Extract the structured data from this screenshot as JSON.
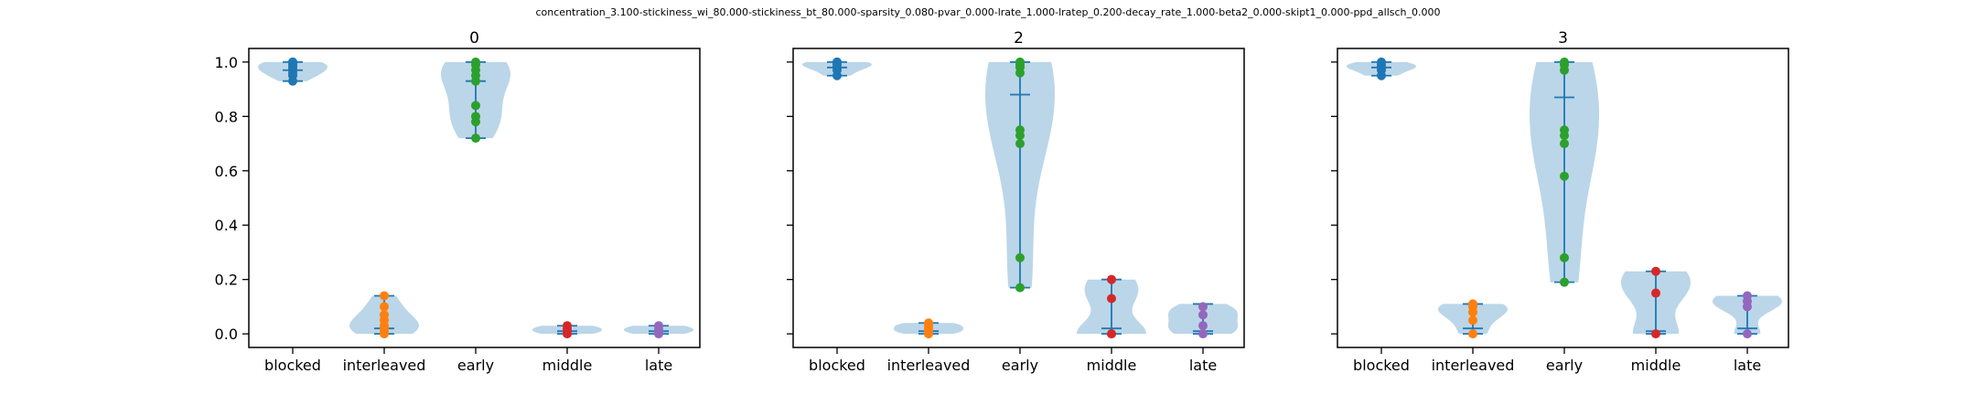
{
  "figure_title": "concentration_3.100-stickiness_wi_80.000-stickiness_bt_80.000-sparsity_0.080-pvar_0.000-lrate_1.000-lratep_0.200-decay_rate_1.000-beta2_0.000-skipt1_0.000-ppd_allsch_0.000",
  "colors": {
    "violin_fill": "#1f77b4",
    "violin_line": "#1f77b4",
    "points": [
      "#1f77b4",
      "#ff7f0e",
      "#2ca02c",
      "#d62728",
      "#9467bd"
    ]
  },
  "chart_data": [
    {
      "type": "violin",
      "title": "0",
      "categories": [
        "blocked",
        "interleaved",
        "early",
        "middle",
        "late"
      ],
      "ylim": [
        -0.05,
        1.05
      ],
      "yticks": [
        "0.0",
        "0.2",
        "0.4",
        "0.6",
        "0.8",
        "1.0"
      ],
      "grid": false,
      "series": [
        {
          "values": [
            0.93,
            0.95,
            0.96,
            0.97,
            0.98,
            0.99,
            1.0,
            1.0
          ],
          "min": 0.93,
          "max": 1.0,
          "mean": 0.97
        },
        {
          "values": [
            0.0,
            0.01,
            0.02,
            0.03,
            0.05,
            0.07,
            0.1,
            0.14
          ],
          "min": 0.0,
          "max": 0.14,
          "mean": 0.02
        },
        {
          "values": [
            0.72,
            0.78,
            0.8,
            0.84,
            0.93,
            0.95,
            0.97,
            0.99,
            1.0
          ],
          "min": 0.72,
          "max": 1.0,
          "mean": 0.93
        },
        {
          "values": [
            0.0,
            0.01,
            0.02,
            0.03
          ],
          "min": 0.0,
          "max": 0.03,
          "mean": 0.01
        },
        {
          "values": [
            0.0,
            0.01,
            0.02,
            0.03
          ],
          "min": 0.0,
          "max": 0.03,
          "mean": 0.01
        }
      ]
    },
    {
      "type": "violin",
      "title": "2",
      "categories": [
        "blocked",
        "interleaved",
        "early",
        "middle",
        "late"
      ],
      "ylim": [
        -0.05,
        1.05
      ],
      "yticks": [
        "0.0",
        "0.2",
        "0.4",
        "0.6",
        "0.8",
        "1.0"
      ],
      "grid": false,
      "series": [
        {
          "values": [
            0.95,
            0.97,
            0.98,
            0.99,
            1.0,
            1.0
          ],
          "min": 0.95,
          "max": 1.0,
          "mean": 0.98
        },
        {
          "values": [
            0.0,
            0.01,
            0.02,
            0.03,
            0.04
          ],
          "min": 0.0,
          "max": 0.04,
          "mean": 0.01
        },
        {
          "values": [
            0.17,
            0.28,
            0.7,
            0.73,
            0.75,
            0.96,
            0.98,
            0.99,
            1.0
          ],
          "min": 0.17,
          "max": 1.0,
          "mean": 0.88
        },
        {
          "values": [
            0.0,
            0.0,
            0.13,
            0.2
          ],
          "min": 0.0,
          "max": 0.2,
          "mean": 0.02
        },
        {
          "values": [
            0.0,
            0.03,
            0.07,
            0.1
          ],
          "min": 0.0,
          "max": 0.11,
          "mean": 0.01
        }
      ]
    },
    {
      "type": "violin",
      "title": "3",
      "categories": [
        "blocked",
        "interleaved",
        "early",
        "middle",
        "late"
      ],
      "ylim": [
        -0.05,
        1.05
      ],
      "yticks": [
        "0.0",
        "0.2",
        "0.4",
        "0.6",
        "0.8",
        "1.0"
      ],
      "grid": false,
      "series": [
        {
          "values": [
            0.95,
            0.97,
            0.98,
            0.99,
            1.0
          ],
          "min": 0.95,
          "max": 1.0,
          "mean": 0.98
        },
        {
          "values": [
            0.0,
            0.05,
            0.08,
            0.1,
            0.11
          ],
          "min": 0.0,
          "max": 0.11,
          "mean": 0.02
        },
        {
          "values": [
            0.19,
            0.28,
            0.58,
            0.7,
            0.73,
            0.75,
            0.97,
            0.99,
            1.0
          ],
          "min": 0.19,
          "max": 1.0,
          "mean": 0.87
        },
        {
          "values": [
            0.0,
            0.15,
            0.23
          ],
          "min": 0.0,
          "max": 0.23,
          "mean": 0.01
        },
        {
          "values": [
            0.0,
            0.1,
            0.12,
            0.14
          ],
          "min": 0.0,
          "max": 0.14,
          "mean": 0.02
        }
      ]
    }
  ]
}
